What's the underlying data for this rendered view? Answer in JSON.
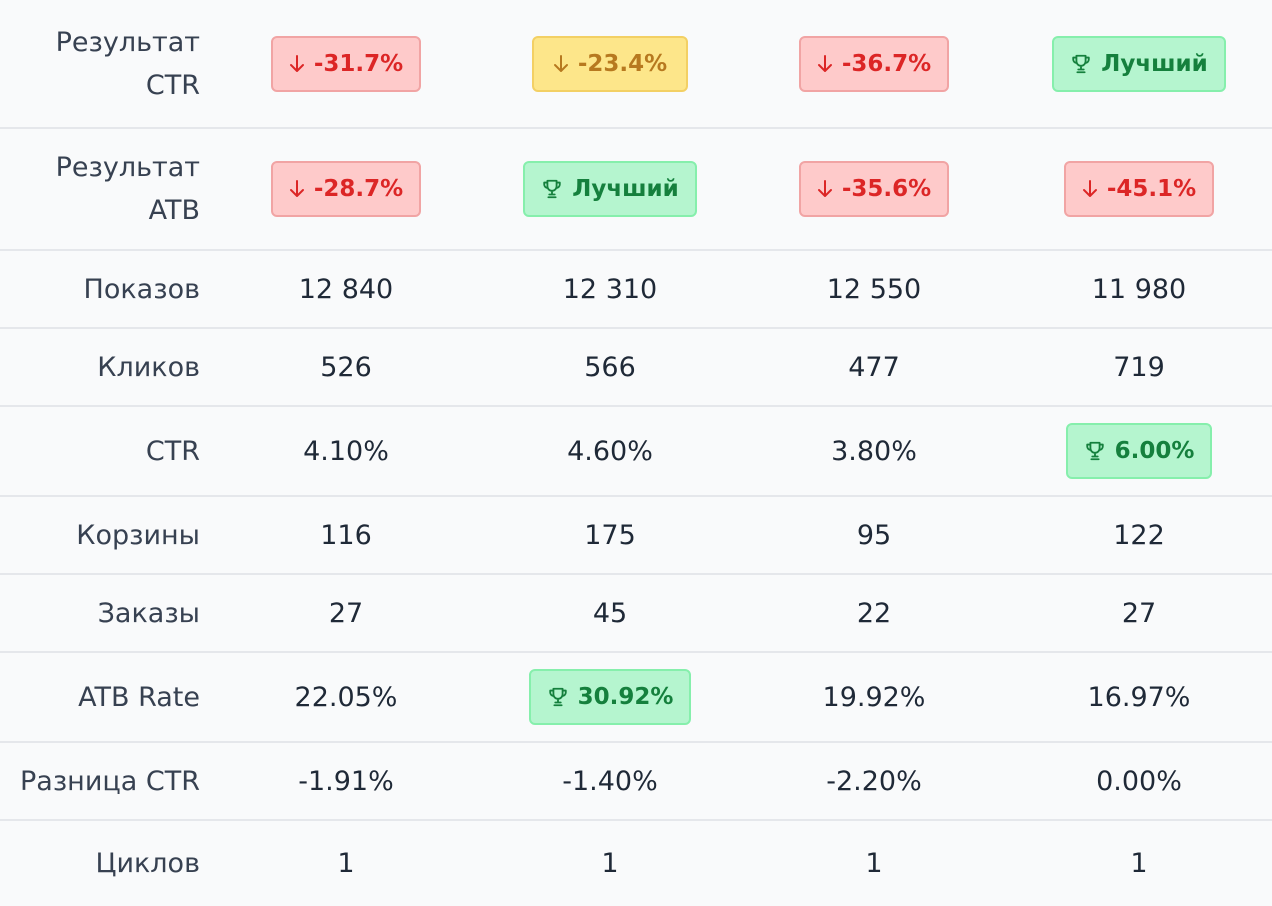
{
  "colors": {
    "negative": "#dc2626",
    "warning": "#b7791f",
    "positive": "#15803d",
    "diff_negative": "#e24a4a",
    "diff_positive": "#3fb66b"
  },
  "rows": {
    "result_ctr": {
      "label": "Результат CTR",
      "cells": [
        {
          "text": "-31.7%",
          "status": "negative",
          "icon": "arrow-down-icon"
        },
        {
          "text": "-23.4%",
          "status": "warning",
          "icon": "arrow-down-icon"
        },
        {
          "text": "-36.7%",
          "status": "negative",
          "icon": "arrow-down-icon"
        },
        {
          "text": "Лучший",
          "status": "best",
          "icon": "trophy-icon"
        }
      ]
    },
    "result_atb": {
      "label": "Результат ATB",
      "cells": [
        {
          "text": "-28.7%",
          "status": "negative",
          "icon": "arrow-down-icon"
        },
        {
          "text": "Лучший",
          "status": "best",
          "icon": "trophy-icon"
        },
        {
          "text": "-35.6%",
          "status": "negative",
          "icon": "arrow-down-icon"
        },
        {
          "text": "-45.1%",
          "status": "negative",
          "icon": "arrow-down-icon"
        }
      ]
    },
    "impressions": {
      "label": "Показов",
      "cells": [
        "12 840",
        "12 310",
        "12 550",
        "11 980"
      ]
    },
    "clicks": {
      "label": "Кликов",
      "cells": [
        "526",
        "566",
        "477",
        "719"
      ]
    },
    "ctr": {
      "label": "CTR",
      "cells": [
        "4.10%",
        "4.60%",
        "3.80%",
        "6.00%"
      ],
      "best_index": 3,
      "best_icon": "trophy-icon"
    },
    "carts": {
      "label": "Корзины",
      "cells": [
        "116",
        "175",
        "95",
        "122"
      ]
    },
    "orders": {
      "label": "Заказы",
      "cells": [
        "27",
        "45",
        "22",
        "27"
      ]
    },
    "atb_rate": {
      "label": "ATB Rate",
      "cells": [
        "22.05%",
        "30.92%",
        "19.92%",
        "16.97%"
      ],
      "best_index": 1,
      "best_icon": "trophy-icon"
    },
    "ctr_diff": {
      "label": "Разница CTR",
      "cells": [
        {
          "text": "-1.91%",
          "sign": "negative"
        },
        {
          "text": "-1.40%",
          "sign": "negative"
        },
        {
          "text": "-2.20%",
          "sign": "negative"
        },
        {
          "text": "0.00%",
          "sign": "positive"
        }
      ]
    },
    "cycles": {
      "label": "Циклов",
      "cells": [
        "1",
        "1",
        "1",
        "1"
      ]
    }
  }
}
